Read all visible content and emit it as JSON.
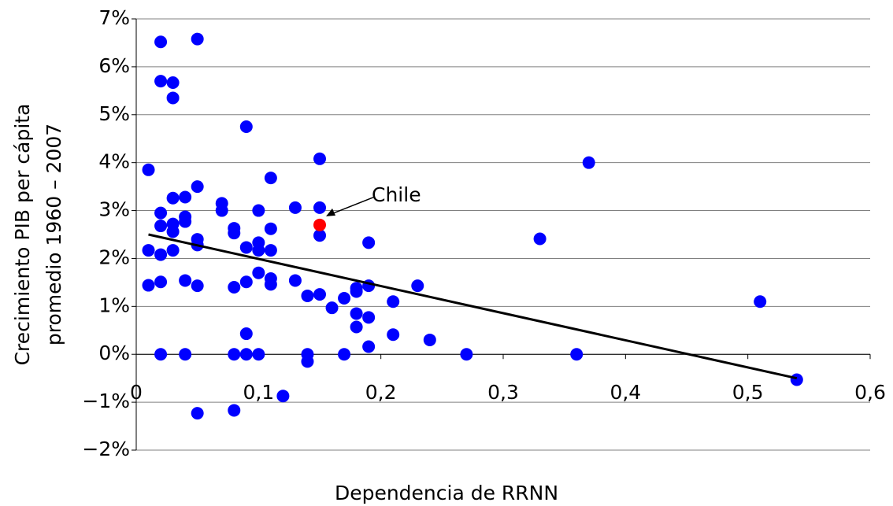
{
  "chart_data": {
    "type": "scatter",
    "x_label": "Dependencia de RRNN",
    "y_label": [
      "Crecimiento PIB per cápita",
      "promedio 1960 – 2007"
    ],
    "color": "#0000ff",
    "x": [
      0.02,
      0.05,
      0.02,
      0.03,
      0.03,
      0.09,
      0.01,
      0.15,
      0.37,
      0.11,
      0.05,
      0.03,
      0.04,
      0.07,
      0.13,
      0.15,
      0.07,
      0.1,
      0.02,
      0.04,
      0.04,
      0.03,
      0.02,
      0.08,
      0.11,
      0.03,
      0.08,
      0.15,
      0.33,
      0.05,
      0.05,
      0.1,
      0.19,
      0.09,
      0.01,
      0.03,
      0.1,
      0.11,
      0.02,
      0.1,
      0.11,
      0.13,
      0.04,
      0.02,
      0.09,
      0.11,
      0.01,
      0.05,
      0.19,
      0.23,
      0.08,
      0.18,
      0.18,
      0.15,
      0.14,
      0.17,
      0.21,
      0.51,
      0.16,
      0.18,
      0.19,
      0.18,
      0.09,
      0.21,
      0.24,
      0.19,
      0.02,
      0.04,
      0.08,
      0.09,
      0.1,
      0.14,
      0.17,
      0.27,
      0.36,
      0.14,
      0.12,
      0.54,
      0.05,
      0.08
    ],
    "y": [
      6.52,
      6.58,
      5.7,
      5.67,
      5.35,
      4.75,
      3.85,
      4.08,
      4.0,
      3.68,
      3.5,
      3.26,
      3.28,
      3.15,
      3.06,
      3.06,
      3.0,
      3.0,
      2.95,
      2.87,
      2.77,
      2.72,
      2.68,
      2.63,
      2.62,
      2.56,
      2.53,
      2.48,
      2.41,
      2.4,
      2.28,
      2.33,
      2.33,
      2.23,
      2.17,
      2.17,
      2.17,
      2.17,
      2.08,
      1.7,
      1.58,
      1.54,
      1.54,
      1.51,
      1.51,
      1.46,
      1.44,
      1.43,
      1.43,
      1.43,
      1.4,
      1.38,
      1.31,
      1.25,
      1.22,
      1.17,
      1.1,
      1.1,
      0.97,
      0.85,
      0.77,
      0.57,
      0.43,
      0.41,
      0.3,
      0.16,
      0,
      0,
      0,
      0,
      0,
      0,
      0,
      0,
      0,
      -0.15,
      -0.87,
      -0.53,
      -1.23,
      -1.17
    ],
    "highlight": {
      "x": 0.15,
      "y": 2.7,
      "color": "#ff0000",
      "label": "Chile"
    },
    "trendline": {
      "x": [
        0.01,
        0.54
      ],
      "y": [
        2.5,
        -0.5
      ],
      "color": "#000000"
    },
    "xlim": [
      0,
      0.6
    ],
    "xticks": [
      0,
      {
        "value": 0.1,
        "label": "0,1"
      },
      {
        "value": 0.2,
        "label": "0,2"
      },
      {
        "value": 0.3,
        "label": "0,3"
      },
      {
        "value": 0.4,
        "label": "0,4"
      },
      {
        "value": 0.5,
        "label": "0,5"
      },
      {
        "value": 0.6,
        "label": "0,6"
      }
    ],
    "ylim": [
      -2,
      7
    ],
    "yticks": [
      {
        "value": -2,
        "label": "−2%"
      },
      {
        "value": -1,
        "label": "−1%"
      },
      {
        "value": 0,
        "label": "0%"
      },
      {
        "value": 1,
        "label": "1%"
      },
      {
        "value": 2,
        "label": "2%"
      },
      {
        "value": 3,
        "label": "3%"
      },
      {
        "value": 4,
        "label": "4%"
      },
      {
        "value": 5,
        "label": "5%"
      },
      {
        "value": 6,
        "label": "6%"
      },
      {
        "value": 7,
        "label": "7%"
      }
    ],
    "grid": true
  }
}
